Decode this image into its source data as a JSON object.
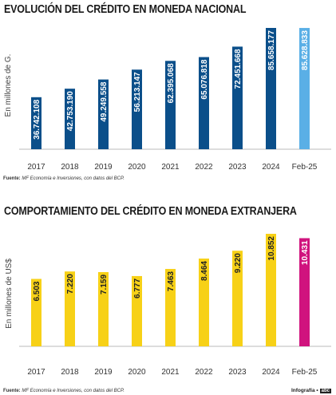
{
  "chart_data": [
    {
      "type": "bar",
      "title": "EVOLUCIÓN DEL CRÉDITO EN MONEDA NACIONAL",
      "ylabel": "En millones de G.",
      "categories": [
        "2017",
        "2018",
        "2019",
        "2020",
        "2021",
        "2022",
        "2023",
        "2024",
        "Feb-25"
      ],
      "values": [
        36742108,
        42753190,
        49249558,
        56213147,
        62395068,
        65076818,
        72451668,
        85658177,
        85628833
      ],
      "labels": [
        "36.742.108",
        "42.753.190",
        "49.249.558",
        "56.213.147",
        "62.395.068",
        "65.076.818",
        "72.451.668",
        "85.658.177",
        "85.628.833"
      ],
      "colors": [
        "#0b4f8a",
        "#0b4f8a",
        "#0b4f8a",
        "#0b4f8a",
        "#0b4f8a",
        "#0b4f8a",
        "#0b4f8a",
        "#0b4f8a",
        "#5aafe6"
      ],
      "ylim": [
        0,
        85658177
      ],
      "grid": false,
      "source_label": "Fuente:",
      "source_text": "MF Economía e Inversiones, con datos del BCP."
    },
    {
      "type": "bar",
      "title": "COMPORTAMIENTO DEL CRÉDITO EN MONEDA EXTRANJERA",
      "ylabel": "En millones de US$",
      "categories": [
        "2017",
        "2018",
        "2019",
        "2020",
        "2021",
        "2022",
        "2023",
        "2024",
        "Feb-25"
      ],
      "values": [
        6503,
        7220,
        7159,
        6777,
        7463,
        8464,
        9220,
        10852,
        10431
      ],
      "labels": [
        "6.503",
        "7.220",
        "7.159",
        "6.777",
        "7.463",
        "8.464",
        "9.220",
        "10.852",
        "10.431"
      ],
      "colors": [
        "#f7d117",
        "#f7d117",
        "#f7d117",
        "#f7d117",
        "#f7d117",
        "#f7d117",
        "#f7d117",
        "#f7d117",
        "#d0137e"
      ],
      "ylim": [
        0,
        10852
      ],
      "grid": false,
      "source_label": "Fuente:",
      "source_text": "MF Economía e Inversiones, con datos del BCP."
    }
  ],
  "credit": {
    "text": "Infografía •",
    "logo": "abc"
  }
}
